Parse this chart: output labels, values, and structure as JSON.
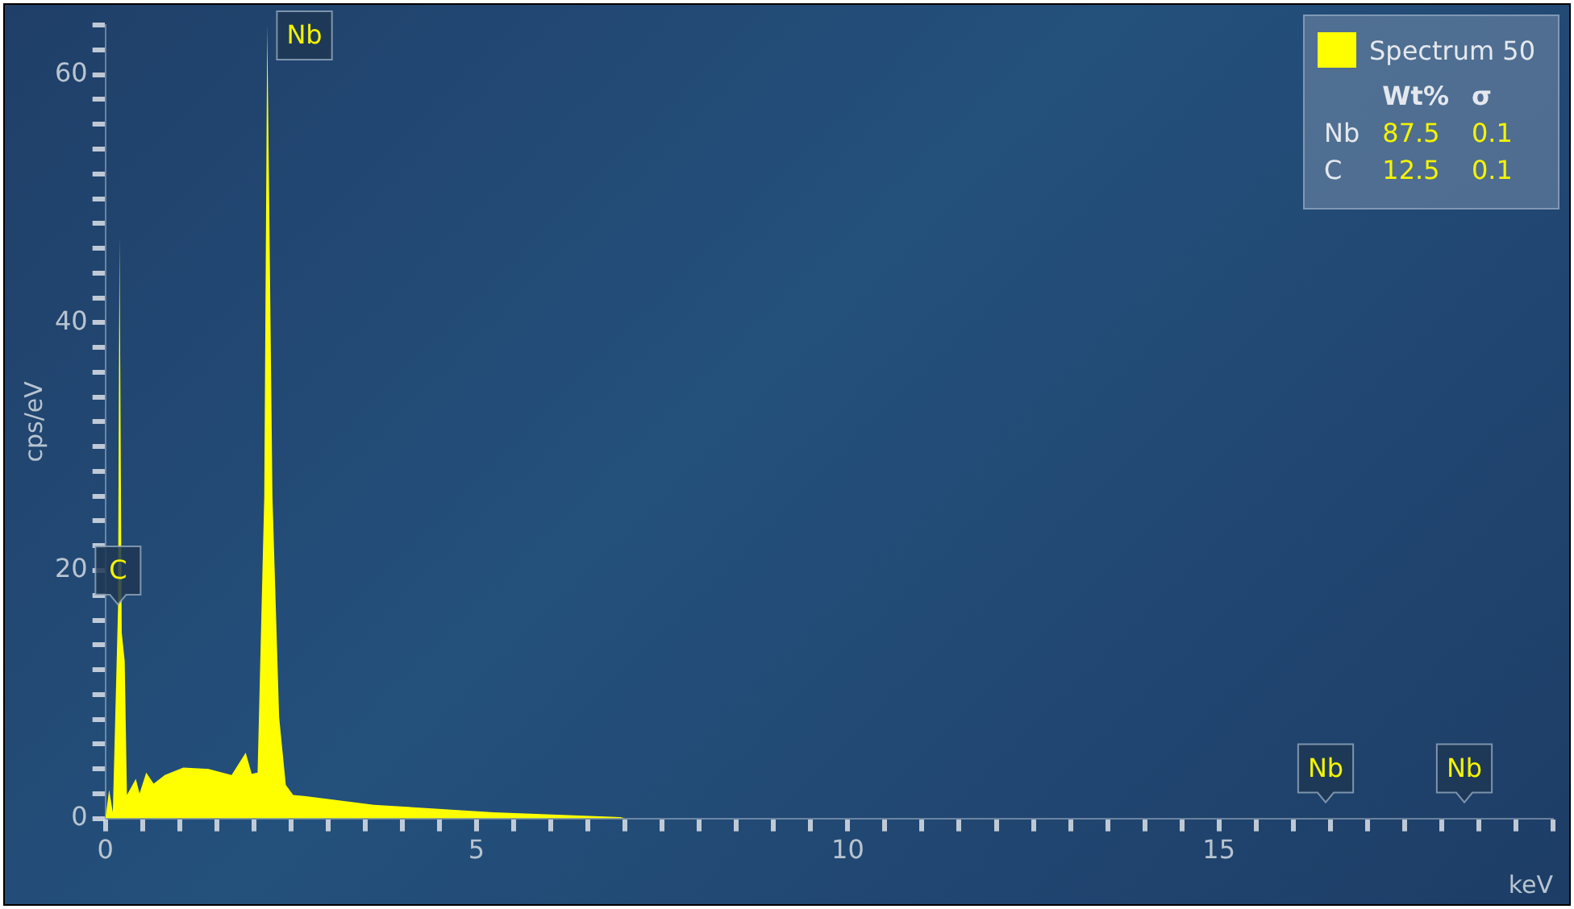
{
  "chart_data": {
    "type": "area",
    "xlabel": "keV",
    "ylabel": "cps/eV",
    "x": [
      0,
      0.05,
      0.1,
      0.17,
      0.19,
      0.22,
      0.26,
      0.29,
      0.41,
      0.46,
      0.55,
      0.65,
      0.8,
      1.05,
      1.38,
      1.7,
      1.89,
      1.97,
      2.05,
      2.14,
      2.18,
      2.25,
      2.34,
      2.43,
      2.53,
      2.7,
      3.62,
      5.23,
      6.94,
      7.0
    ],
    "series": [
      {
        "name": "Spectrum 50",
        "color": "#ffff00",
        "values": [
          0,
          2.3,
          0.5,
          17,
          47,
          15,
          12.7,
          1.9,
          3.2,
          2,
          3.7,
          2.8,
          3.5,
          4.1,
          4,
          3.5,
          5.3,
          3.6,
          3.7,
          26,
          64,
          26,
          8.2,
          2.7,
          1.9,
          1.8,
          1.1,
          0.5,
          0.1,
          0
        ]
      }
    ],
    "xlim": [
      0,
      19.5
    ],
    "ylim": [
      0,
      64
    ],
    "xticks": [
      0,
      {
        "value": 0.5,
        "label": null
      },
      {
        "value": 1,
        "label": null
      },
      {
        "value": 1.5,
        "label": null
      },
      {
        "value": 2,
        "label": null
      },
      {
        "value": 2.5,
        "label": null
      },
      {
        "value": 3,
        "label": null
      },
      {
        "value": 3.5,
        "label": null
      },
      {
        "value": 4,
        "label": null
      },
      {
        "value": 4.5,
        "label": null
      },
      5,
      {
        "value": 5.5,
        "label": null
      },
      {
        "value": 6,
        "label": null
      },
      {
        "value": 6.5,
        "label": null
      },
      {
        "value": 7,
        "label": null
      },
      {
        "value": 7.5,
        "label": null
      },
      {
        "value": 8,
        "label": null
      },
      {
        "value": 8.5,
        "label": null
      },
      {
        "value": 9,
        "label": null
      },
      {
        "value": 9.5,
        "label": null
      },
      10,
      {
        "value": 10.5,
        "label": null
      },
      {
        "value": 11,
        "label": null
      },
      {
        "value": 11.5,
        "label": null
      },
      {
        "value": 12,
        "label": null
      },
      {
        "value": 12.5,
        "label": null
      },
      {
        "value": 13,
        "label": null
      },
      {
        "value": 13.5,
        "label": null
      },
      {
        "value": 14,
        "label": null
      },
      {
        "value": 14.5,
        "label": null
      },
      15,
      {
        "value": 15.5,
        "label": null
      },
      {
        "value": 16,
        "label": null
      },
      {
        "value": 16.5,
        "label": null
      },
      {
        "value": 17,
        "label": null
      },
      {
        "value": 17.5,
        "label": null
      },
      {
        "value": 18,
        "label": null
      },
      {
        "value": 18.5,
        "label": null
      },
      {
        "value": 19,
        "label": null
      },
      {
        "value": 19.5,
        "label": null
      }
    ],
    "yticks": [
      0,
      {
        "value": 2,
        "label": null
      },
      {
        "value": 4,
        "label": null
      },
      {
        "value": 6,
        "label": null
      },
      {
        "value": 8,
        "label": null
      },
      {
        "value": 10,
        "label": null
      },
      {
        "value": 12,
        "label": null
      },
      {
        "value": 14,
        "label": null
      },
      {
        "value": 16,
        "label": null
      },
      {
        "value": 18,
        "label": null
      },
      20,
      {
        "value": 22,
        "label": null
      },
      {
        "value": 24,
        "label": null
      },
      {
        "value": 26,
        "label": null
      },
      {
        "value": 28,
        "label": null
      },
      {
        "value": 30,
        "label": null
      },
      {
        "value": 32,
        "label": null
      },
      {
        "value": 34,
        "label": null
      },
      {
        "value": 36,
        "label": null
      },
      {
        "value": 38,
        "label": null
      },
      40,
      {
        "value": 42,
        "label": null
      },
      {
        "value": 44,
        "label": null
      },
      {
        "value": 46,
        "label": null
      },
      {
        "value": 48,
        "label": null
      },
      {
        "value": 50,
        "label": null
      },
      {
        "value": 52,
        "label": null
      },
      {
        "value": 54,
        "label": null
      },
      {
        "value": 56,
        "label": null
      },
      {
        "value": 58,
        "label": null
      },
      60,
      {
        "value": 62,
        "label": null
      },
      {
        "value": 64,
        "label": null
      }
    ],
    "legend": "top right",
    "annotations": [
      "Nb",
      "Nb",
      {
        "text": "Nb",
        "x": 2.18,
        "y": 64
      },
      {
        "text": "C",
        "x": 0.17,
        "y": 17
      },
      "Wt%",
      "σ",
      "Nb",
      "87.5",
      "0.1",
      "C",
      "12.5",
      "0.1"
    ]
  }
}
